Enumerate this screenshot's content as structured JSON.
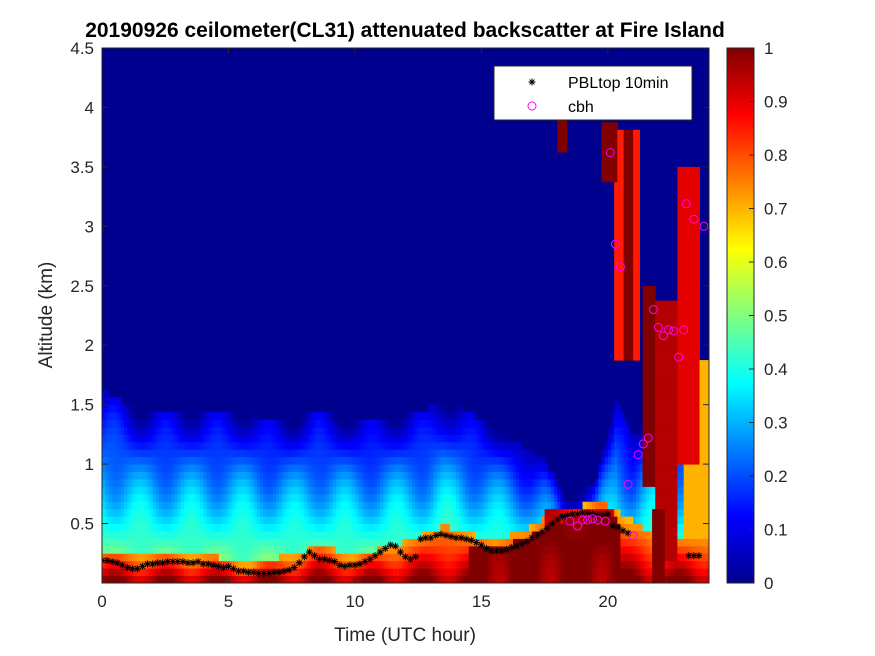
{
  "chart_data": {
    "type": "heatmap",
    "title": "20190926 ceilometer(CL31) attenuated backscatter at Fire Island",
    "xlabel": "Time (UTC hour)",
    "ylabel": "Altitude (km)",
    "xlim": [
      0,
      24
    ],
    "ylim": [
      0,
      4.5
    ],
    "xticks": [
      "0",
      "5",
      "10",
      "15",
      "20"
    ],
    "yticks": [
      "0.5",
      "1",
      "1.5",
      "2",
      "2.5",
      "3",
      "3.5",
      "4",
      "4.5"
    ],
    "colorbar": {
      "colormap": "jet",
      "range": [
        0,
        1
      ],
      "ticks": [
        "0",
        "0.1",
        "0.2",
        "0.3",
        "0.4",
        "0.5",
        "0.6",
        "0.7",
        "0.8",
        "0.9",
        "1"
      ]
    },
    "legend": {
      "position": "top-right",
      "entries": [
        {
          "label": "PBLtop 10min",
          "marker": "asterisk",
          "color": "#000000"
        },
        {
          "label": "cbh",
          "marker": "circle",
          "color": "#ff00ff"
        }
      ]
    },
    "series": [
      {
        "name": "PBLtop 10min",
        "x": [
          0.0,
          0.2,
          0.4,
          0.6,
          0.8,
          1.0,
          1.2,
          1.4,
          1.6,
          1.8,
          2.0,
          2.2,
          2.4,
          2.6,
          2.8,
          3.0,
          3.2,
          3.4,
          3.6,
          3.8,
          4.0,
          4.2,
          4.4,
          4.6,
          4.8,
          5.0,
          5.2,
          5.4,
          5.6,
          5.8,
          6.0,
          6.2,
          6.4,
          6.6,
          6.8,
          7.0,
          7.2,
          7.4,
          7.6,
          7.8,
          8.0,
          8.2,
          8.4,
          8.6,
          8.8,
          9.0,
          9.2,
          9.4,
          9.6,
          9.8,
          10.0,
          10.2,
          10.4,
          10.6,
          10.8,
          11.0,
          11.2,
          11.4,
          11.6,
          11.8,
          12.0,
          12.2,
          12.4,
          12.6,
          12.8,
          13.0,
          13.2,
          13.4,
          13.6,
          13.8,
          14.0,
          14.2,
          14.4,
          14.6,
          14.8,
          15.0,
          15.2,
          15.4,
          15.6,
          15.8,
          16.0,
          16.2,
          16.4,
          16.6,
          16.8,
          17.0,
          17.2,
          17.4,
          17.6,
          17.8,
          18.0,
          18.2,
          18.4,
          18.6,
          18.8,
          19.0,
          19.2,
          19.4,
          19.6,
          19.8,
          20.0,
          20.2,
          20.4,
          20.6,
          20.8,
          23.2,
          23.4,
          23.6
        ],
        "y": [
          0.19,
          0.19,
          0.18,
          0.17,
          0.15,
          0.13,
          0.12,
          0.12,
          0.14,
          0.16,
          0.16,
          0.17,
          0.17,
          0.18,
          0.18,
          0.18,
          0.18,
          0.17,
          0.17,
          0.18,
          0.16,
          0.16,
          0.15,
          0.14,
          0.13,
          0.14,
          0.12,
          0.1,
          0.1,
          0.09,
          0.09,
          0.08,
          0.08,
          0.08,
          0.09,
          0.09,
          0.1,
          0.11,
          0.13,
          0.17,
          0.22,
          0.26,
          0.23,
          0.2,
          0.2,
          0.19,
          0.18,
          0.15,
          0.14,
          0.15,
          0.15,
          0.16,
          0.18,
          0.2,
          0.23,
          0.26,
          0.29,
          0.32,
          0.31,
          0.26,
          0.22,
          0.2,
          0.22,
          0.37,
          0.38,
          0.38,
          0.4,
          0.41,
          0.4,
          0.39,
          0.38,
          0.38,
          0.37,
          0.36,
          0.34,
          0.32,
          0.29,
          0.27,
          0.27,
          0.27,
          0.28,
          0.3,
          0.31,
          0.33,
          0.35,
          0.38,
          0.4,
          0.43,
          0.46,
          0.5,
          0.53,
          0.56,
          0.57,
          0.58,
          0.58,
          0.59,
          0.59,
          0.58,
          0.57,
          0.57,
          0.58,
          0.48,
          0.47,
          0.44,
          0.42,
          0.23,
          0.23,
          0.23
        ]
      },
      {
        "name": "cbh",
        "x": [
          18.5,
          18.8,
          19.0,
          19.2,
          19.4,
          19.6,
          19.9,
          20.1,
          20.3,
          20.5,
          20.8,
          21.0,
          21.2,
          21.4,
          21.6,
          21.8,
          22.0,
          22.2,
          22.4,
          22.6,
          22.8,
          23.0,
          23.1,
          23.4,
          23.8
        ],
        "y": [
          0.52,
          0.48,
          0.53,
          0.53,
          0.54,
          0.53,
          0.52,
          3.62,
          2.85,
          2.66,
          0.83,
          0.4,
          1.08,
          1.17,
          1.22,
          2.3,
          2.15,
          2.08,
          2.13,
          2.12,
          1.9,
          2.13,
          3.19,
          3.06,
          3.0
        ]
      }
    ]
  }
}
